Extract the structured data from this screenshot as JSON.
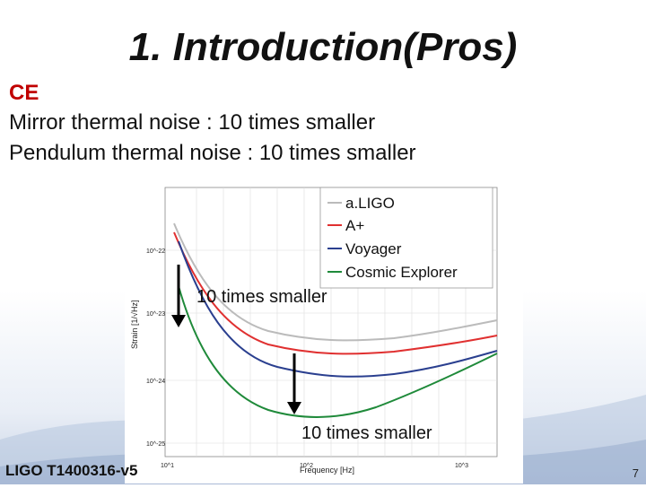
{
  "slide": {
    "title": "1.  Introduction(Pros)",
    "subhead": "CE",
    "line1": "Mirror thermal noise : 10 times smaller",
    "line2": "Pendulum thermal noise  : 10 times smaller",
    "footer": "LIGO T1400316-v5",
    "page_number": "7",
    "annotation_1": "10 times smaller",
    "annotation_2": "10 times smaller"
  },
  "chart_data": {
    "type": "line",
    "xlabel": "Frequency [Hz]",
    "ylabel": "Strain [1/√Hz]",
    "x_scale": "log",
    "y_scale": "log",
    "x_ticks": [
      "10^1",
      "10^2",
      "10^3"
    ],
    "y_ticks": [
      "10^-22",
      "10^-23",
      "10^-24",
      "10^-25"
    ],
    "grid": true,
    "legend_position": "top-right",
    "series": [
      {
        "name": "a.LIGO",
        "color": "#bbbbbb"
      },
      {
        "name": "A+",
        "color": "#e03030"
      },
      {
        "name": "Voyager",
        "color": "#2a3f8f"
      },
      {
        "name": "Cosmic Explorer",
        "color": "#1f8a3a"
      }
    ]
  }
}
